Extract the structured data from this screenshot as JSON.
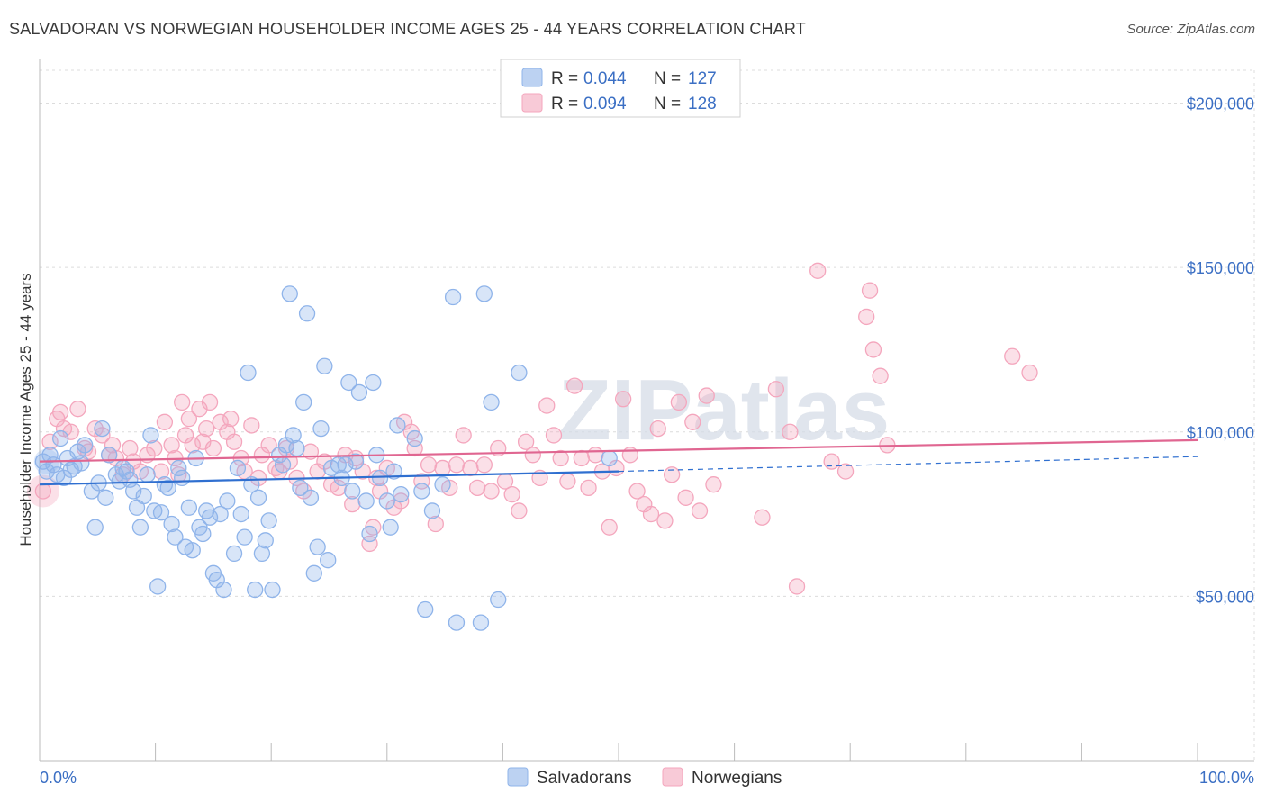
{
  "header": {
    "title": "SALVADORAN VS NORWEGIAN HOUSEHOLDER INCOME AGES 25 - 44 YEARS CORRELATION CHART",
    "source": "Source: ZipAtlas.com"
  },
  "watermark": "ZIPatlas",
  "legend": {
    "r_label": "R =",
    "n_label": "N =",
    "rows": [
      {
        "r": "0.044",
        "n": "127",
        "color": "#8fb4ea"
      },
      {
        "r": "0.094",
        "n": "128",
        "color": "#f4a6bd"
      }
    ]
  },
  "bottom_legend": [
    {
      "label": "Salvadorans",
      "color": "#8fb4ea"
    },
    {
      "label": "Norwegians",
      "color": "#f4a6bd"
    }
  ],
  "colors": {
    "blue_point": "#8fb4ea",
    "blue_line": "#2f6fd0",
    "pink_point": "#f4a6bd",
    "pink_line": "#e06691",
    "axis_text": "#3b6fc4"
  },
  "chart_data": {
    "type": "scatter",
    "title": "SALVADORAN VS NORWEGIAN HOUSEHOLDER INCOME AGES 25 - 44 YEARS CORRELATION CHART",
    "xlabel": "",
    "ylabel": "Householder Income Ages 25 - 44 years",
    "xlim": [
      0,
      100
    ],
    "ylim": [
      0,
      210000
    ],
    "x_tick_labels": [
      "0.0%",
      "100.0%"
    ],
    "y_ticks": [
      50000,
      100000,
      150000,
      200000
    ],
    "y_tick_labels": [
      "$50,000",
      "$100,000",
      "$150,000",
      "$200,000"
    ],
    "grid": true,
    "legend_position": "top-center",
    "series": [
      {
        "name": "Salvadorans",
        "trend": {
          "x": [
            0,
            50
          ],
          "y": [
            84000,
            88000
          ],
          "dashed_to": [
            100,
            92500
          ]
        },
        "points": [
          [
            0.3,
            91000
          ],
          [
            0.6,
            88000
          ],
          [
            0.9,
            93000
          ],
          [
            1.2,
            90000
          ],
          [
            1.5,
            87000
          ],
          [
            1.8,
            98000
          ],
          [
            2.1,
            86000
          ],
          [
            2.4,
            92000
          ],
          [
            2.7,
            88500
          ],
          [
            3.0,
            89500
          ],
          [
            3.3,
            94000
          ],
          [
            3.6,
            90500
          ],
          [
            3.9,
            96000
          ],
          [
            4.5,
            82000
          ],
          [
            4.8,
            71000
          ],
          [
            5.1,
            84500
          ],
          [
            5.4,
            101000
          ],
          [
            5.7,
            80000
          ],
          [
            6.0,
            93000
          ],
          [
            6.6,
            87000
          ],
          [
            6.9,
            85000
          ],
          [
            7.2,
            89000
          ],
          [
            7.5,
            88000
          ],
          [
            7.8,
            85500
          ],
          [
            8.1,
            82000
          ],
          [
            8.4,
            77000
          ],
          [
            8.7,
            71000
          ],
          [
            9.0,
            80500
          ],
          [
            9.3,
            87000
          ],
          [
            9.6,
            99000
          ],
          [
            9.9,
            76000
          ],
          [
            10.2,
            53000
          ],
          [
            10.5,
            75500
          ],
          [
            10.8,
            84000
          ],
          [
            11.1,
            83000
          ],
          [
            11.4,
            72000
          ],
          [
            11.7,
            68000
          ],
          [
            12.0,
            89000
          ],
          [
            12.3,
            86000
          ],
          [
            12.6,
            65000
          ],
          [
            12.9,
            77000
          ],
          [
            13.2,
            64000
          ],
          [
            13.5,
            92000
          ],
          [
            13.8,
            71000
          ],
          [
            14.1,
            69000
          ],
          [
            14.4,
            76000
          ],
          [
            14.7,
            74000
          ],
          [
            15.0,
            57000
          ],
          [
            15.3,
            55000
          ],
          [
            15.6,
            75000
          ],
          [
            15.9,
            52000
          ],
          [
            16.2,
            79000
          ],
          [
            16.8,
            63000
          ],
          [
            17.1,
            89000
          ],
          [
            17.4,
            75000
          ],
          [
            17.7,
            68000
          ],
          [
            18.0,
            118000
          ],
          [
            18.3,
            84000
          ],
          [
            18.6,
            52000
          ],
          [
            18.9,
            80000
          ],
          [
            19.2,
            63000
          ],
          [
            19.5,
            67000
          ],
          [
            19.8,
            73000
          ],
          [
            20.1,
            52000
          ],
          [
            20.7,
            93000
          ],
          [
            21.0,
            90000
          ],
          [
            21.3,
            96000
          ],
          [
            21.6,
            142000
          ],
          [
            21.9,
            99000
          ],
          [
            22.2,
            95000
          ],
          [
            22.5,
            83000
          ],
          [
            22.8,
            109000
          ],
          [
            23.1,
            136000
          ],
          [
            23.4,
            80000
          ],
          [
            23.7,
            57000
          ],
          [
            24.0,
            65000
          ],
          [
            24.3,
            101000
          ],
          [
            24.6,
            120000
          ],
          [
            24.9,
            61000
          ],
          [
            25.2,
            89000
          ],
          [
            25.8,
            90000
          ],
          [
            26.1,
            86000
          ],
          [
            26.4,
            90000
          ],
          [
            26.7,
            115000
          ],
          [
            27.0,
            82000
          ],
          [
            27.3,
            91000
          ],
          [
            27.6,
            112000
          ],
          [
            28.2,
            79000
          ],
          [
            28.5,
            69000
          ],
          [
            28.8,
            115000
          ],
          [
            29.1,
            93000
          ],
          [
            29.4,
            86000
          ],
          [
            30.0,
            79000
          ],
          [
            30.3,
            71000
          ],
          [
            30.6,
            88000
          ],
          [
            30.9,
            102000
          ],
          [
            31.2,
            81000
          ],
          [
            32.4,
            98000
          ],
          [
            33.0,
            82000
          ],
          [
            33.3,
            46000
          ],
          [
            33.9,
            76000
          ],
          [
            34.8,
            84000
          ],
          [
            35.7,
            141000
          ],
          [
            36.0,
            42000
          ],
          [
            38.1,
            42000
          ],
          [
            38.4,
            142000
          ],
          [
            39.0,
            109000
          ],
          [
            39.6,
            49000
          ],
          [
            41.4,
            118000
          ],
          [
            49.2,
            92000
          ]
        ]
      },
      {
        "name": "Norwegians",
        "trend": {
          "x": [
            0,
            100
          ],
          "y": [
            91000,
            97500
          ]
        },
        "points": [
          [
            0.3,
            82000
          ],
          [
            0.9,
            97000
          ],
          [
            1.5,
            104000
          ],
          [
            1.8,
            106000
          ],
          [
            2.1,
            101000
          ],
          [
            2.7,
            100000
          ],
          [
            3.3,
            107000
          ],
          [
            3.9,
            95000
          ],
          [
            4.2,
            94000
          ],
          [
            4.8,
            101000
          ],
          [
            5.4,
            99000
          ],
          [
            6.0,
            93000
          ],
          [
            6.3,
            96000
          ],
          [
            6.6,
            92000
          ],
          [
            7.2,
            87000
          ],
          [
            7.8,
            95000
          ],
          [
            8.1,
            91000
          ],
          [
            8.7,
            88000
          ],
          [
            9.3,
            93000
          ],
          [
            9.9,
            95000
          ],
          [
            10.5,
            88000
          ],
          [
            10.8,
            103000
          ],
          [
            11.4,
            96000
          ],
          [
            11.7,
            92000
          ],
          [
            12.0,
            87000
          ],
          [
            12.3,
            109000
          ],
          [
            12.6,
            99000
          ],
          [
            12.9,
            104000
          ],
          [
            13.2,
            96000
          ],
          [
            13.8,
            107000
          ],
          [
            14.1,
            97000
          ],
          [
            14.4,
            101000
          ],
          [
            14.7,
            109000
          ],
          [
            15.0,
            95000
          ],
          [
            15.6,
            103000
          ],
          [
            16.2,
            100000
          ],
          [
            16.5,
            104000
          ],
          [
            16.8,
            97000
          ],
          [
            17.4,
            92000
          ],
          [
            17.7,
            88000
          ],
          [
            18.3,
            102000
          ],
          [
            18.9,
            86000
          ],
          [
            19.2,
            93000
          ],
          [
            19.8,
            96000
          ],
          [
            20.4,
            89000
          ],
          [
            20.7,
            88000
          ],
          [
            21.3,
            95000
          ],
          [
            21.6,
            91000
          ],
          [
            22.2,
            86000
          ],
          [
            22.8,
            82000
          ],
          [
            23.4,
            94000
          ],
          [
            24.0,
            88000
          ],
          [
            24.6,
            91000
          ],
          [
            25.2,
            84000
          ],
          [
            25.8,
            83000
          ],
          [
            26.4,
            93000
          ],
          [
            27.0,
            78000
          ],
          [
            27.3,
            92000
          ],
          [
            27.9,
            88000
          ],
          [
            28.5,
            66000
          ],
          [
            28.8,
            71000
          ],
          [
            29.1,
            86000
          ],
          [
            29.4,
            82000
          ],
          [
            30.0,
            89000
          ],
          [
            30.6,
            77000
          ],
          [
            31.2,
            79000
          ],
          [
            31.5,
            103000
          ],
          [
            32.1,
            100000
          ],
          [
            32.4,
            95000
          ],
          [
            33.0,
            85000
          ],
          [
            33.6,
            90000
          ],
          [
            34.2,
            72000
          ],
          [
            34.8,
            89000
          ],
          [
            35.4,
            83000
          ],
          [
            36.0,
            90000
          ],
          [
            36.6,
            99000
          ],
          [
            37.2,
            89000
          ],
          [
            37.8,
            83000
          ],
          [
            38.4,
            90000
          ],
          [
            39.0,
            82000
          ],
          [
            39.6,
            95000
          ],
          [
            40.2,
            85000
          ],
          [
            40.8,
            81000
          ],
          [
            41.4,
            76000
          ],
          [
            42.0,
            97000
          ],
          [
            42.6,
            93000
          ],
          [
            43.2,
            86000
          ],
          [
            43.8,
            108000
          ],
          [
            44.4,
            99000
          ],
          [
            45.0,
            92000
          ],
          [
            45.6,
            85000
          ],
          [
            46.2,
            114000
          ],
          [
            46.8,
            92000
          ],
          [
            47.4,
            83000
          ],
          [
            48.0,
            93000
          ],
          [
            48.6,
            88000
          ],
          [
            49.2,
            71000
          ],
          [
            49.8,
            89000
          ],
          [
            50.4,
            110000
          ],
          [
            51.0,
            93000
          ],
          [
            51.6,
            82000
          ],
          [
            52.2,
            78000
          ],
          [
            52.8,
            75000
          ],
          [
            53.4,
            101000
          ],
          [
            54.0,
            73000
          ],
          [
            54.6,
            87000
          ],
          [
            55.2,
            109000
          ],
          [
            55.8,
            80000
          ],
          [
            56.4,
            103000
          ],
          [
            57.0,
            76000
          ],
          [
            57.6,
            111000
          ],
          [
            58.2,
            84000
          ],
          [
            62.4,
            74000
          ],
          [
            63.6,
            113000
          ],
          [
            64.8,
            100000
          ],
          [
            65.4,
            53000
          ],
          [
            67.2,
            149000
          ],
          [
            68.4,
            91000
          ],
          [
            69.6,
            88000
          ],
          [
            71.4,
            135000
          ],
          [
            71.7,
            143000
          ],
          [
            72.0,
            125000
          ],
          [
            72.6,
            117000
          ],
          [
            73.2,
            96000
          ],
          [
            84.0,
            123000
          ],
          [
            85.5,
            118000
          ]
        ]
      }
    ]
  }
}
